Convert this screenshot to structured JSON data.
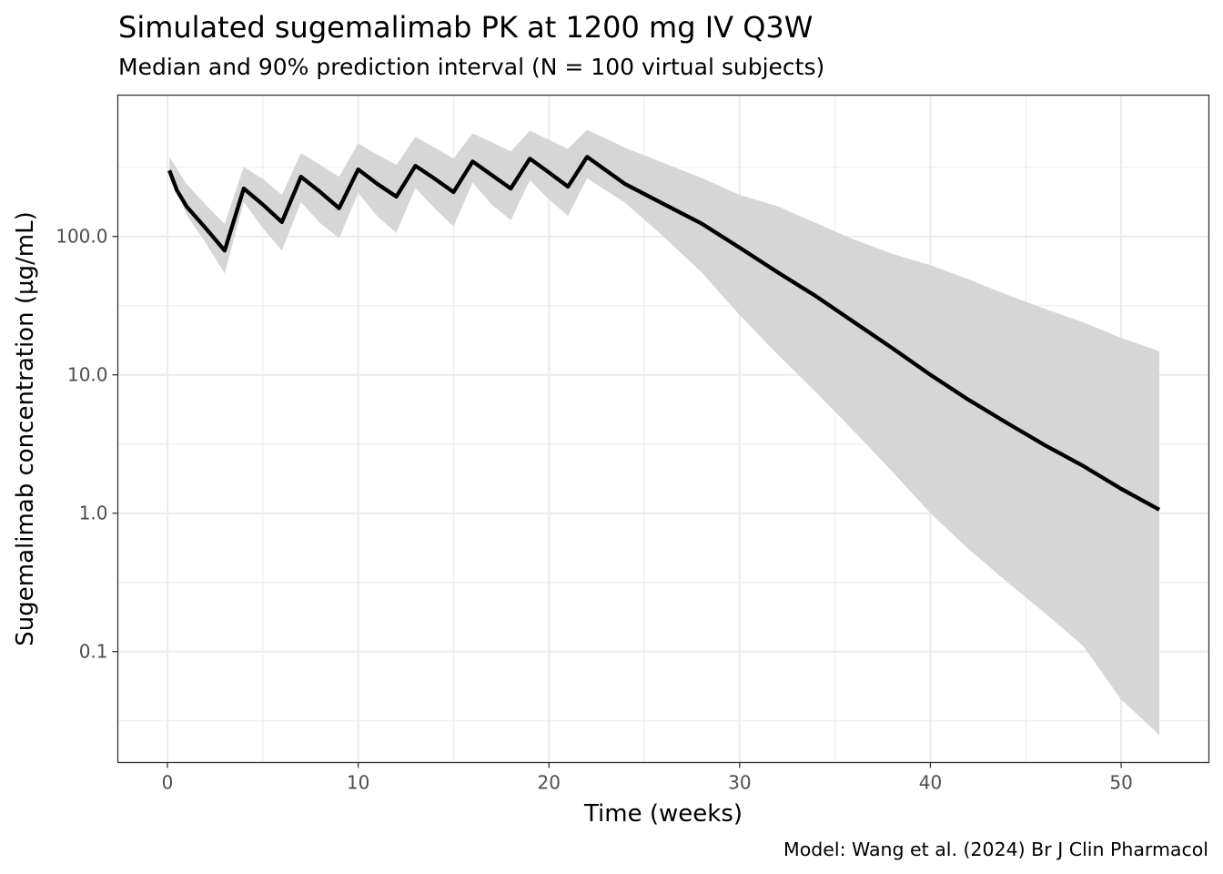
{
  "chart_data": {
    "type": "line",
    "title": "Simulated sugemalimab PK at 1200 mg IV Q3W",
    "subtitle": "Median and 90% prediction interval (N = 100 virtual subjects)",
    "caption": "Model: Wang et al. (2024) Br J Clin Pharmacol",
    "xlabel": "Time (weeks)",
    "ylabel": "Sugemalimab concentration (µg/mL)",
    "xlim": [
      -2.6,
      54.6
    ],
    "ylim": [
      0.0158,
      1050
    ],
    "yscale": "log10",
    "grid": true,
    "x_ticks": [
      0,
      10,
      20,
      30,
      40,
      50
    ],
    "x_tick_labels": [
      "0",
      "10",
      "20",
      "30",
      "40",
      "50"
    ],
    "y_ticks": [
      0.1,
      1,
      10,
      100
    ],
    "y_tick_labels": [
      "0.1",
      "1.0",
      "10.0",
      "100.0"
    ],
    "legend": "none",
    "series": [
      {
        "name": "Median",
        "kind": "line",
        "color": "#000000",
        "x": [
          0.1,
          0.5,
          1,
          2,
          3,
          4,
          5,
          6,
          7,
          8,
          9,
          10,
          11,
          12,
          13,
          14,
          15,
          16,
          17,
          18,
          19,
          20,
          21,
          22,
          24,
          26,
          28,
          30,
          32,
          34,
          36,
          38,
          40,
          42,
          44,
          46,
          48,
          50,
          52
        ],
        "y": [
          300,
          215,
          165,
          115,
          79,
          222,
          170,
          127,
          270,
          210,
          160,
          305,
          240,
          194,
          324,
          262,
          209,
          348,
          278,
          222,
          365,
          290,
          229,
          376,
          239,
          172,
          124,
          83,
          55,
          37,
          24,
          15.6,
          10.0,
          6.6,
          4.5,
          3.1,
          2.2,
          1.5,
          1.06
        ]
      },
      {
        "name": "90% prediction interval",
        "kind": "ribbon",
        "color": "#d6d6d6",
        "x": [
          0.1,
          1,
          2,
          3,
          4,
          5,
          6,
          7,
          8,
          9,
          10,
          11,
          12,
          13,
          14,
          15,
          16,
          17,
          18,
          19,
          20,
          21,
          22,
          24,
          26,
          28,
          30,
          32,
          34,
          36,
          38,
          40,
          42,
          44,
          46,
          48,
          50,
          52
        ],
        "upper": [
          376,
          240,
          170,
          123,
          318,
          260,
          200,
          400,
          330,
          270,
          471,
          390,
          328,
          524,
          440,
          365,
          556,
          480,
          411,
          582,
          500,
          430,
          590,
          437,
          340,
          265,
          200,
          165,
          125,
          95,
          75,
          62,
          49,
          38,
          30,
          24,
          18.5,
          14.8
        ],
        "lower": [
          295,
          144,
          90,
          54,
          177,
          115,
          79,
          177,
          125,
          97,
          206,
          140,
          106,
          225,
          160,
          118,
          245,
          170,
          131,
          255,
          185,
          141,
          263,
          175,
          100,
          55,
          27,
          14,
          7.5,
          3.9,
          2.0,
          1.0,
          0.55,
          0.32,
          0.19,
          0.11,
          0.045,
          0.025
        ]
      }
    ]
  }
}
